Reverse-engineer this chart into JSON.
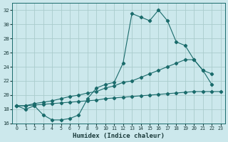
{
  "xlabel": "Humidex (Indice chaleur)",
  "bg_color": "#cce8ec",
  "grid_color": "#aacccc",
  "line_color": "#1a6b6b",
  "xlim": [
    -0.5,
    23.5
  ],
  "ylim": [
    16,
    33
  ],
  "xticks": [
    0,
    1,
    2,
    3,
    4,
    5,
    6,
    7,
    8,
    9,
    10,
    11,
    12,
    13,
    14,
    15,
    16,
    17,
    18,
    19,
    20,
    21,
    22,
    23
  ],
  "yticks": [
    16,
    18,
    20,
    22,
    24,
    26,
    28,
    30,
    32
  ],
  "series": [
    {
      "x": [
        0,
        1,
        2,
        3,
        4,
        5,
        6,
        7,
        8,
        9,
        10,
        11,
        12,
        13,
        14,
        15,
        16,
        17,
        18,
        19,
        20,
        21,
        22
      ],
      "y": [
        18.5,
        18.0,
        18.5,
        17.2,
        16.5,
        16.5,
        16.7,
        17.2,
        19.5,
        21.0,
        21.5,
        21.8,
        24.5,
        31.5,
        31.0,
        30.5,
        32.0,
        30.5,
        27.5,
        27.0,
        25.0,
        23.5,
        21.5
      ]
    },
    {
      "x": [
        0,
        1,
        2,
        3,
        4,
        5,
        6,
        7,
        8,
        9,
        10,
        11,
        12,
        13,
        14,
        15,
        16,
        17,
        18,
        19,
        20,
        21,
        22
      ],
      "y": [
        18.5,
        18.5,
        18.8,
        19.0,
        19.2,
        19.5,
        19.8,
        20.0,
        20.3,
        20.5,
        21.0,
        21.3,
        21.8,
        22.0,
        22.5,
        23.0,
        23.5,
        24.0,
        24.5,
        25.0,
        25.0,
        23.5,
        23.0
      ]
    },
    {
      "x": [
        0,
        1,
        2,
        3,
        4,
        5,
        6,
        7,
        8,
        9,
        10,
        11,
        12,
        13,
        14,
        15,
        16,
        17,
        18,
        19,
        20,
        21,
        22,
        23
      ],
      "y": [
        18.5,
        18.5,
        18.6,
        18.7,
        18.8,
        18.9,
        19.0,
        19.1,
        19.2,
        19.3,
        19.5,
        19.6,
        19.7,
        19.8,
        19.9,
        20.0,
        20.1,
        20.2,
        20.3,
        20.4,
        20.5,
        20.5,
        20.5,
        20.5
      ]
    }
  ]
}
